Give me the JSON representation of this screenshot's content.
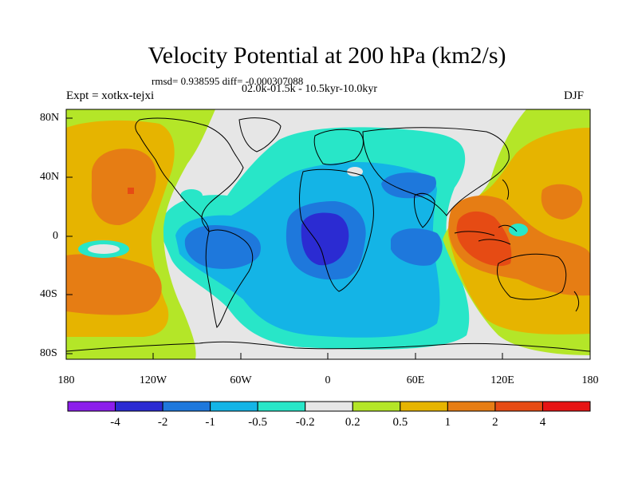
{
  "title": "Velocity Potential at 200 hPa (km2/s)",
  "stats_line": "rmsd= 0.938595 diff= -0.000307088",
  "period_line": "02.0k-01.5k - 10.5kyr-10.0kyr",
  "experiment": "Expt = xotkx-tejxi",
  "season": "DJF",
  "lat_ticks": [
    "80N",
    "40N",
    "0",
    "40S",
    "80S"
  ],
  "lon_ticks": [
    "180",
    "120W",
    "60W",
    "0",
    "60E",
    "120E",
    "180"
  ],
  "colorbar": {
    "labels": [
      "-4",
      "-2",
      "-1",
      "-0.5",
      "-0.2",
      "0.2",
      "0.5",
      "1",
      "2",
      "4"
    ],
    "colors": [
      "#8c1eeb",
      "#2b2bd2",
      "#1e78dc",
      "#14b4e6",
      "#28e6c8",
      "#e6e6e6",
      "#b4e628",
      "#e6b400",
      "#e67d14",
      "#e64b14",
      "#e61414"
    ]
  },
  "colors": {
    "background": "#ffffff",
    "coastline": "#000000"
  }
}
